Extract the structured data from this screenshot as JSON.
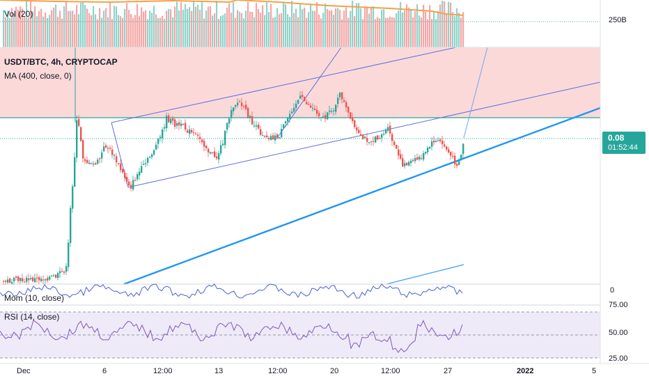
{
  "chart_data": {
    "type": "candlestick",
    "symbol_label": "USDT/BTC, 4h, CRYPTOCAP",
    "ma_label": "MA (400, close, 0)",
    "volume_label": "Vol (20)",
    "momentum_label": "Mom (10, close)",
    "rsi_label": "RSI (14, close)",
    "last_price": "0.08",
    "countdown": "01:52:44",
    "volume_axis_label": "250B",
    "momentum_axis_label": "0",
    "rsi_ticks": [
      "75.00",
      "50.00",
      "25.00"
    ],
    "x_ticks": [
      "Dec",
      "6",
      "12:00",
      "13",
      "12:00",
      "20",
      "12:00",
      "27",
      "2022",
      "5"
    ],
    "colors": {
      "up": "#26a69a",
      "down": "#ef5350",
      "ma_band": "#fbd9d9",
      "trendline": "#2196f3",
      "channel": "#5b6ee1",
      "volume_ma": "#f7a046",
      "rsi_line": "#7e57c2",
      "rsi_band": "#efeaf7",
      "momentum_line": "#4a5fd1",
      "horizontal_level": "#26a69a"
    },
    "price_pane": {
      "ylim": [
        0,
        0.3
      ],
      "horizontal_levels": [
        0.0946,
        0.079
      ]
    }
  }
}
